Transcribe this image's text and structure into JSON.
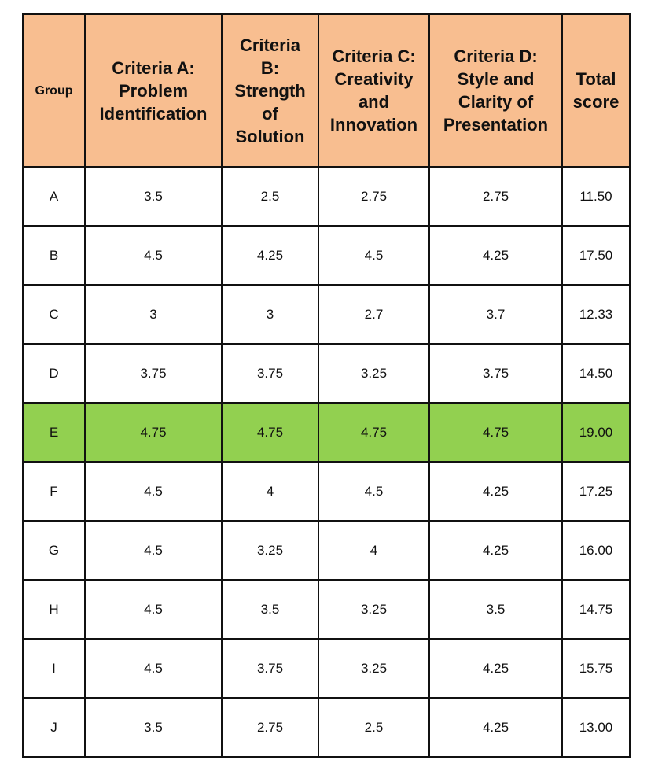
{
  "table": {
    "headers": {
      "group": "Group",
      "a": [
        "Criteria A:",
        "Problem",
        "Identification"
      ],
      "b": [
        "Criteria",
        "B:",
        "Strength",
        "of",
        "Solution"
      ],
      "c": [
        "Criteria C:",
        "Creativity",
        "and",
        "Innovation"
      ],
      "d": [
        "Criteria D:",
        "Style and",
        "Clarity of",
        "Presentation"
      ],
      "total": [
        "Total",
        "score"
      ]
    },
    "highlight_color": "#92d050",
    "header_color": "#f8be90",
    "rows": [
      [
        "A",
        "3.5",
        "2.5",
        "2.75",
        "2.75",
        "11.50"
      ],
      [
        "B",
        "4.5",
        "4.25",
        "4.5",
        "4.25",
        "17.50"
      ],
      [
        "C",
        "3",
        "3",
        "2.7",
        "3.7",
        "12.33"
      ],
      [
        "D",
        "3.75",
        "3.75",
        "3.25",
        "3.75",
        "14.50"
      ],
      [
        "E",
        "4.75",
        "4.75",
        "4.75",
        "4.75",
        "19.00"
      ],
      [
        "F",
        "4.5",
        "4",
        "4.5",
        "4.25",
        "17.25"
      ],
      [
        "G",
        "4.5",
        "3.25",
        "4",
        "4.25",
        "16.00"
      ],
      [
        "H",
        "4.5",
        "3.5",
        "3.25",
        "3.5",
        "14.75"
      ],
      [
        "I",
        "4.5",
        "3.75",
        "3.25",
        "4.25",
        "15.75"
      ],
      [
        "J",
        "3.5",
        "2.75",
        "2.5",
        "4.25",
        "13.00"
      ]
    ],
    "highlighted_row": "E"
  }
}
